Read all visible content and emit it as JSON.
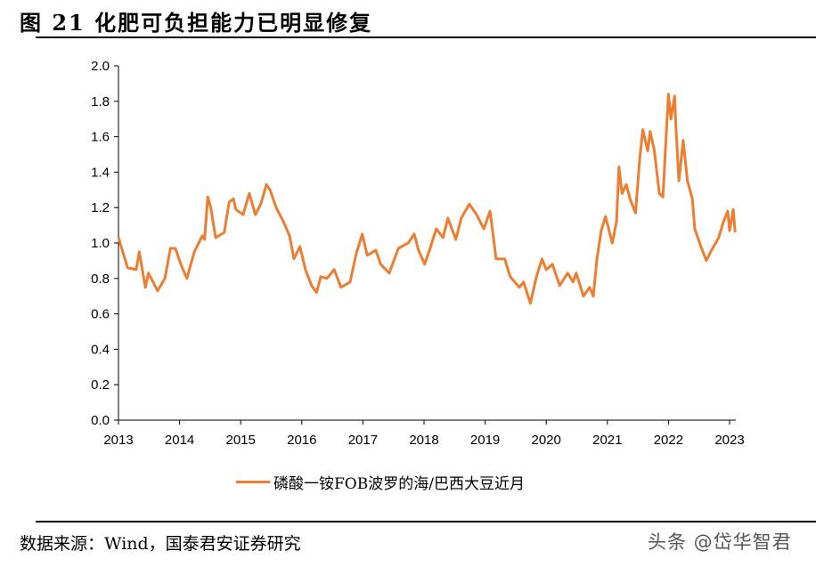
{
  "figure": {
    "title": "图 21 化肥可负担能力已明显修复",
    "source": "数据来源：Wind，国泰君安证券研究",
    "watermark": "头条 @岱华智君"
  },
  "chart_data": {
    "type": "line",
    "title": "",
    "xlabel": "",
    "ylabel": "",
    "xlim": [
      2013,
      2023.1
    ],
    "ylim": [
      0,
      2.0
    ],
    "x_ticks": [
      "2013",
      "2014",
      "2015",
      "2016",
      "2017",
      "2018",
      "2019",
      "2020",
      "2021",
      "2022",
      "2023"
    ],
    "y_ticks": [
      "0.0",
      "0.2",
      "0.4",
      "0.6",
      "0.8",
      "1.0",
      "1.2",
      "1.4",
      "1.6",
      "1.8",
      "2.0"
    ],
    "grid": false,
    "legend_position": "bottom",
    "series": [
      {
        "name": "磷酸一铵FOB波罗的海/巴西大豆近月",
        "color": "#ED7D31",
        "x": [
          2013.0,
          2013.15,
          2013.29,
          2013.34,
          2013.44,
          2013.49,
          2013.64,
          2013.76,
          2013.85,
          2013.93,
          2014.02,
          2014.12,
          2014.24,
          2014.37,
          2014.41,
          2014.46,
          2014.51,
          2014.59,
          2014.73,
          2014.81,
          2014.88,
          2014.92,
          2015.04,
          2015.14,
          2015.24,
          2015.33,
          2015.42,
          2015.48,
          2015.58,
          2015.7,
          2015.8,
          2015.87,
          2015.97,
          2016.06,
          2016.16,
          2016.24,
          2016.31,
          2016.41,
          2016.53,
          2016.64,
          2016.79,
          2016.89,
          2016.99,
          2017.07,
          2017.21,
          2017.29,
          2017.43,
          2017.58,
          2017.74,
          2017.84,
          2017.91,
          2018.01,
          2018.09,
          2018.2,
          2018.31,
          2018.39,
          2018.52,
          2018.61,
          2018.74,
          2018.86,
          2018.98,
          2019.08,
          2019.18,
          2019.32,
          2019.41,
          2019.56,
          2019.63,
          2019.74,
          2019.84,
          2019.93,
          2020.0,
          2020.1,
          2020.22,
          2020.35,
          2020.44,
          2020.49,
          2020.61,
          2020.71,
          2020.77,
          2020.83,
          2020.9,
          2020.97,
          2021.08,
          2021.15,
          2021.19,
          2021.24,
          2021.31,
          2021.37,
          2021.46,
          2021.53,
          2021.58,
          2021.66,
          2021.7,
          2021.77,
          2021.85,
          2021.91,
          2021.95,
          2022.0,
          2022.04,
          2022.1,
          2022.12,
          2022.17,
          2022.24,
          2022.31,
          2022.39,
          2022.43,
          2022.53,
          2022.62,
          2022.69,
          2022.82,
          2022.9,
          2022.97,
          2023.0,
          2023.06,
          2023.09
        ],
        "y": [
          1.03,
          0.86,
          0.85,
          0.95,
          0.75,
          0.83,
          0.73,
          0.8,
          0.97,
          0.97,
          0.88,
          0.8,
          0.95,
          1.04,
          1.02,
          1.26,
          1.2,
          1.03,
          1.06,
          1.23,
          1.25,
          1.19,
          1.16,
          1.28,
          1.16,
          1.22,
          1.33,
          1.3,
          1.2,
          1.12,
          1.04,
          0.91,
          0.98,
          0.85,
          0.76,
          0.72,
          0.81,
          0.8,
          0.85,
          0.75,
          0.78,
          0.94,
          1.05,
          0.93,
          0.96,
          0.88,
          0.83,
          0.97,
          1.0,
          1.05,
          0.96,
          0.88,
          0.96,
          1.08,
          1.03,
          1.14,
          1.02,
          1.14,
          1.22,
          1.16,
          1.08,
          1.18,
          0.91,
          0.91,
          0.81,
          0.75,
          0.78,
          0.66,
          0.81,
          0.91,
          0.85,
          0.88,
          0.76,
          0.83,
          0.78,
          0.83,
          0.7,
          0.75,
          0.7,
          0.91,
          1.07,
          1.15,
          1.0,
          1.12,
          1.43,
          1.28,
          1.33,
          1.25,
          1.17,
          1.48,
          1.64,
          1.52,
          1.63,
          1.52,
          1.28,
          1.26,
          1.53,
          1.84,
          1.7,
          1.83,
          1.67,
          1.35,
          1.58,
          1.35,
          1.25,
          1.08,
          0.98,
          0.9,
          0.95,
          1.03,
          1.12,
          1.18,
          1.07,
          1.19,
          1.06
        ]
      }
    ]
  }
}
